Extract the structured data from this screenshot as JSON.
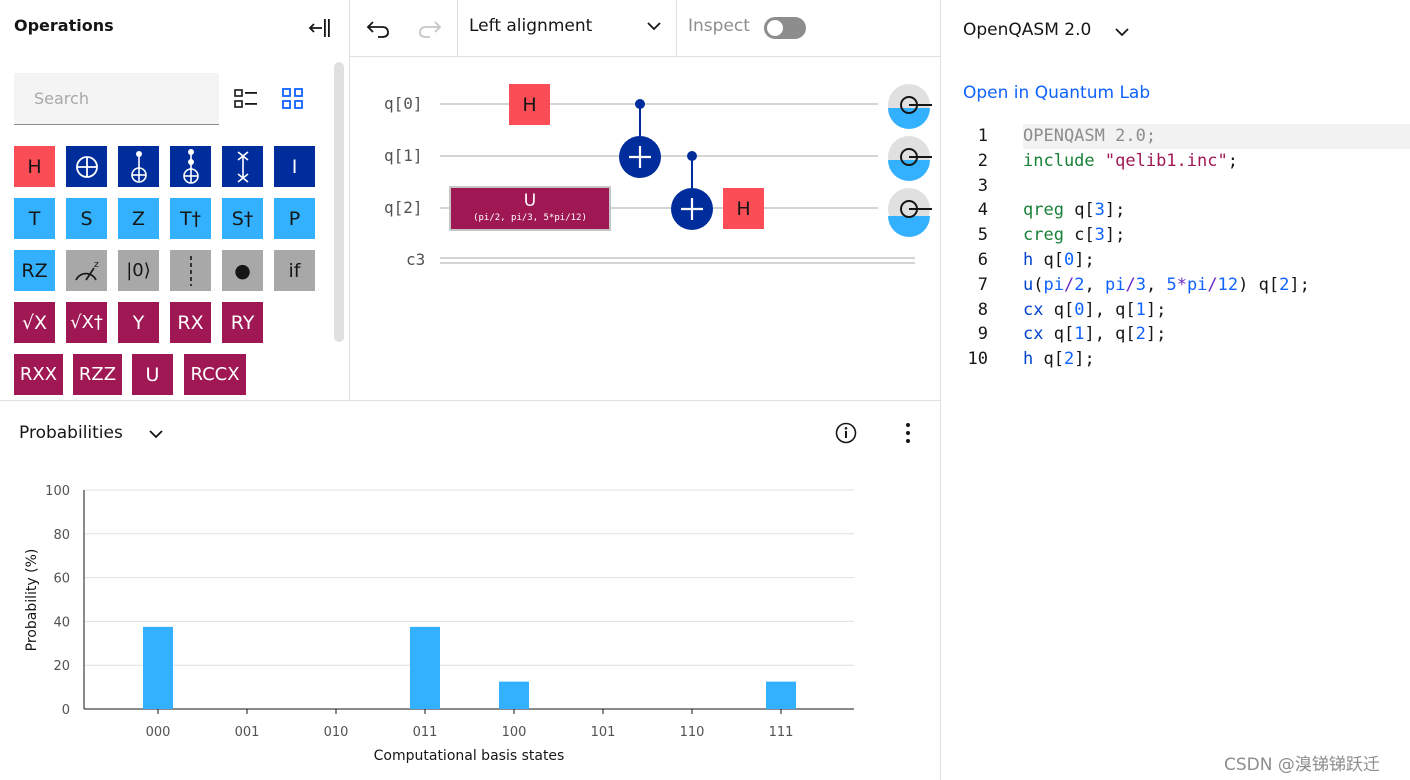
{
  "operations": {
    "title": "Operations",
    "search_placeholder": "Search",
    "gate_rows": [
      [
        {
          "label": "H",
          "color": "red"
        },
        {
          "label": "",
          "color": "navy",
          "icon": "oplus-icon"
        },
        {
          "label": "",
          "color": "navy",
          "icon": "cnot-icon"
        },
        {
          "label": "",
          "color": "navy",
          "icon": "toffoli-icon"
        },
        {
          "label": "",
          "color": "navy",
          "icon": "swap-icon"
        },
        {
          "label": "I",
          "color": "navy"
        }
      ],
      [
        {
          "label": "T",
          "color": "blue"
        },
        {
          "label": "S",
          "color": "blue"
        },
        {
          "label": "Z",
          "color": "blue"
        },
        {
          "label": "T†",
          "color": "blue"
        },
        {
          "label": "S†",
          "color": "blue"
        },
        {
          "label": "P",
          "color": "blue"
        }
      ],
      [
        {
          "label": "RZ",
          "color": "blue"
        },
        {
          "label": "",
          "color": "gray",
          "icon": "measure-icon"
        },
        {
          "label": "|0⟩",
          "color": "gray"
        },
        {
          "label": "",
          "color": "gray",
          "icon": "barrier-icon"
        },
        {
          "label": "●",
          "color": "gray"
        },
        {
          "label": "if",
          "color": "gray"
        }
      ],
      [
        {
          "label": "√X",
          "color": "maroon"
        },
        {
          "label": "√X†",
          "color": "maroon"
        },
        {
          "label": "Y",
          "color": "maroon"
        },
        {
          "label": "RX",
          "color": "maroon"
        },
        {
          "label": "RY",
          "color": "maroon"
        }
      ],
      [
        {
          "label": "RXX",
          "color": "maroon"
        },
        {
          "label": "RZZ",
          "color": "maroon"
        },
        {
          "label": "U",
          "color": "maroon"
        },
        {
          "label": "RCCX",
          "color": "maroon"
        }
      ]
    ]
  },
  "toolbar": {
    "alignment_label": "Left alignment",
    "inspect_label": "Inspect",
    "inspect_on": false
  },
  "circuit": {
    "qubits": [
      "q[0]",
      "q[1]",
      "q[2]"
    ],
    "classical": "c3",
    "gates": {
      "h_q0": "H",
      "u_q2": "U",
      "u_params": "(pi/2, pi/3, 5*pi/12)",
      "h_q2": "H"
    }
  },
  "probabilities": {
    "title": "Probabilities"
  },
  "chart_data": {
    "type": "bar",
    "categories": [
      "000",
      "001",
      "010",
      "011",
      "100",
      "101",
      "110",
      "111"
    ],
    "values": [
      37.5,
      0,
      0,
      37.5,
      12.5,
      0,
      0,
      12.5
    ],
    "xlabel": "Computational basis states",
    "ylabel": "Probability (%)",
    "ylim": [
      0,
      100
    ],
    "yticks": [
      "0",
      "20",
      "40",
      "60",
      "80",
      "100"
    ],
    "bar_color": "#33b1ff"
  },
  "code": {
    "language": "OpenQASM 2.0",
    "open_link": "Open in Quantum Lab",
    "line_numbers": [
      "1",
      "2",
      "3",
      "4",
      "5",
      "6",
      "7",
      "8",
      "9",
      "10"
    ],
    "lines": [
      [
        {
          "t": "OPENQASM 2.0;",
          "c": "gray"
        }
      ],
      [
        {
          "t": "include ",
          "c": "green"
        },
        {
          "t": "\"qelib1.inc\"",
          "c": "str"
        },
        {
          "t": ";",
          "c": ""
        }
      ],
      [],
      [
        {
          "t": "qreg",
          "c": "green"
        },
        {
          "t": " q[",
          "c": ""
        },
        {
          "t": "3",
          "c": "num"
        },
        {
          "t": "];",
          "c": ""
        }
      ],
      [
        {
          "t": "creg",
          "c": "green"
        },
        {
          "t": " c[",
          "c": ""
        },
        {
          "t": "3",
          "c": "num"
        },
        {
          "t": "];",
          "c": ""
        }
      ],
      [
        {
          "t": "h",
          "c": "blue"
        },
        {
          "t": " q[",
          "c": ""
        },
        {
          "t": "0",
          "c": "num"
        },
        {
          "t": "];",
          "c": ""
        }
      ],
      [
        {
          "t": "u",
          "c": "blue"
        },
        {
          "t": "(",
          "c": ""
        },
        {
          "t": "pi",
          "c": "num"
        },
        {
          "t": "/",
          "c": "op"
        },
        {
          "t": "2",
          "c": "num"
        },
        {
          "t": ", ",
          "c": ""
        },
        {
          "t": "pi",
          "c": "num"
        },
        {
          "t": "/",
          "c": "op"
        },
        {
          "t": "3",
          "c": "num"
        },
        {
          "t": ", ",
          "c": ""
        },
        {
          "t": "5",
          "c": "num"
        },
        {
          "t": "*",
          "c": "op"
        },
        {
          "t": "pi",
          "c": "num"
        },
        {
          "t": "/",
          "c": "op"
        },
        {
          "t": "12",
          "c": "num"
        },
        {
          "t": ") q[",
          "c": ""
        },
        {
          "t": "2",
          "c": "num"
        },
        {
          "t": "];",
          "c": ""
        }
      ],
      [
        {
          "t": "cx",
          "c": "blue"
        },
        {
          "t": " q[",
          "c": ""
        },
        {
          "t": "0",
          "c": "num"
        },
        {
          "t": "], q[",
          "c": ""
        },
        {
          "t": "1",
          "c": "num"
        },
        {
          "t": "];",
          "c": ""
        }
      ],
      [
        {
          "t": "cx",
          "c": "blue"
        },
        {
          "t": " q[",
          "c": ""
        },
        {
          "t": "1",
          "c": "num"
        },
        {
          "t": "], q[",
          "c": ""
        },
        {
          "t": "2",
          "c": "num"
        },
        {
          "t": "];",
          "c": ""
        }
      ],
      [
        {
          "t": "h",
          "c": "blue"
        },
        {
          "t": " q[",
          "c": ""
        },
        {
          "t": "2",
          "c": "num"
        },
        {
          "t": "];",
          "c": ""
        }
      ]
    ]
  },
  "watermark": "CSDN @溴锑锑跃迁"
}
